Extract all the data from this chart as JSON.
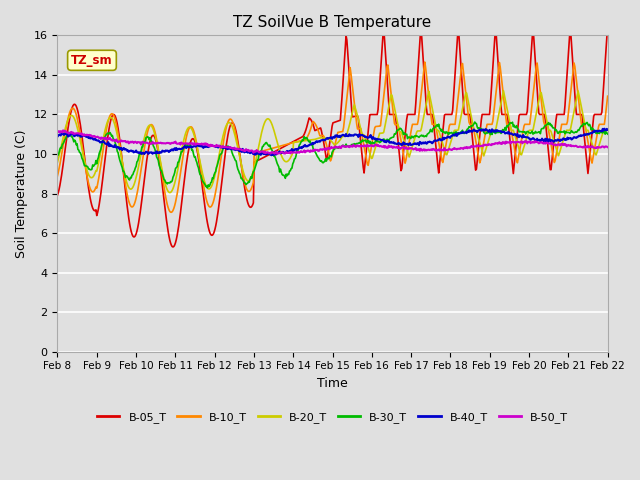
{
  "title": "TZ SoilVue B Temperature",
  "xlabel": "Time",
  "ylabel": "Soil Temperature (C)",
  "ylim": [
    0,
    16
  ],
  "yticks": [
    0,
    2,
    4,
    6,
    8,
    10,
    12,
    14,
    16
  ],
  "xtick_labels": [
    "Feb 8",
    "Feb 9",
    "Feb 10",
    "Feb 11",
    "Feb 12",
    "Feb 13",
    "Feb 14",
    "Feb 15",
    "Feb 16",
    "Feb 17",
    "Feb 18",
    "Feb 19",
    "Feb 20",
    "Feb 21",
    "Feb 22"
  ],
  "annotation_text": "TZ_sm",
  "annotation_color": "#cc0000",
  "annotation_bg": "#ffffcc",
  "bg_color": "#e0e0e0",
  "plot_bg_color": "#e0e0e0",
  "grid_color": "white",
  "legend_labels": [
    "B-05_T",
    "B-10_T",
    "B-20_T",
    "B-30_T",
    "B-40_T",
    "B-50_T"
  ],
  "legend_colors": [
    "#dd0000",
    "#ff8800",
    "#cccc00",
    "#00bb00",
    "#0000cc",
    "#cc00cc"
  ],
  "line_widths": [
    1.2,
    1.2,
    1.2,
    1.2,
    1.5,
    1.5
  ]
}
